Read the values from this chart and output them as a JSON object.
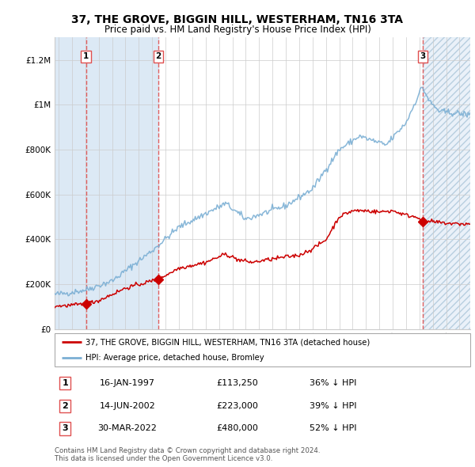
{
  "title": "37, THE GROVE, BIGGIN HILL, WESTERHAM, TN16 3TA",
  "subtitle": "Price paid vs. HM Land Registry's House Price Index (HPI)",
  "ylim": [
    0,
    1300000
  ],
  "xlim_start": 1994.7,
  "xlim_end": 2025.8,
  "sale_dates": [
    1997.04,
    2002.45,
    2022.24
  ],
  "sale_prices": [
    113250,
    223000,
    480000
  ],
  "sale_labels": [
    "1",
    "2",
    "3"
  ],
  "sale_date_labels": [
    "16-JAN-1997",
    "14-JUN-2002",
    "30-MAR-2022"
  ],
  "sale_price_labels": [
    "£113,250",
    "£223,000",
    "£480,000"
  ],
  "sale_pct_labels": [
    "36% ↓ HPI",
    "39% ↓ HPI",
    "52% ↓ HPI"
  ],
  "red_line_color": "#cc0000",
  "blue_line_color": "#7bafd4",
  "marker_color": "#cc0000",
  "shade_color": "#dce9f5",
  "dashed_line_color": "#e05050",
  "grid_color": "#cccccc",
  "background_color": "#ffffff",
  "legend_label_red": "37, THE GROVE, BIGGIN HILL, WESTERHAM, TN16 3TA (detached house)",
  "legend_label_blue": "HPI: Average price, detached house, Bromley",
  "footer": "Contains HM Land Registry data © Crown copyright and database right 2024.\nThis data is licensed under the Open Government Licence v3.0.",
  "yticks": [
    0,
    200000,
    400000,
    600000,
    800000,
    1000000,
    1200000
  ],
  "ytick_labels": [
    "£0",
    "£200K",
    "£400K",
    "£600K",
    "£800K",
    "£1M",
    "£1.2M"
  ],
  "xticks": [
    1995,
    1996,
    1997,
    1998,
    1999,
    2000,
    2001,
    2002,
    2003,
    2004,
    2005,
    2006,
    2007,
    2008,
    2009,
    2010,
    2011,
    2012,
    2013,
    2014,
    2015,
    2016,
    2017,
    2018,
    2019,
    2020,
    2021,
    2022,
    2023,
    2024,
    2025
  ]
}
